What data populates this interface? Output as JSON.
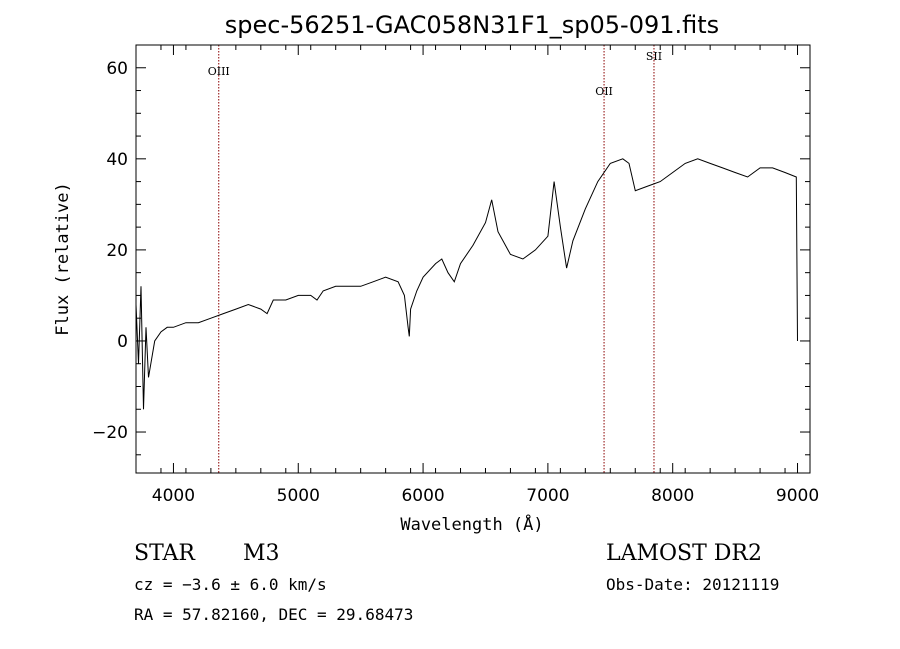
{
  "chart_data": {
    "type": "line",
    "title": "spec-56251-GAC058N31F1_sp05-091.fits",
    "xlabel": "Wavelength (Å)",
    "ylabel": "Flux (relative)",
    "xlim": [
      3700,
      9100
    ],
    "ylim": [
      -29,
      65
    ],
    "x_ticks": [
      4000,
      5000,
      6000,
      7000,
      8000,
      9000
    ],
    "x_tick_labels": [
      "4000",
      "5000",
      "6000",
      "7000",
      "8000",
      "9000"
    ],
    "y_ticks": [
      -20,
      0,
      20,
      40,
      60
    ],
    "y_tick_labels": [
      "−20",
      "0",
      "20",
      "40",
      "60"
    ],
    "grid": false,
    "series": [
      {
        "x": [
          3700,
          3720,
          3740,
          3760,
          3780,
          3800,
          3850,
          3900,
          3950,
          4000,
          4100,
          4200,
          4300,
          4400,
          4500,
          4600,
          4700,
          4750,
          4800,
          4900,
          5000,
          5100,
          5150,
          5200,
          5300,
          5400,
          5500,
          5600,
          5700,
          5800,
          5850,
          5880,
          5890,
          5900,
          5950,
          6000,
          6100,
          6150,
          6200,
          6250,
          6300,
          6400,
          6500,
          6550,
          6600,
          6700,
          6800,
          6900,
          7000,
          7050,
          7100,
          7150,
          7200,
          7300,
          7400,
          7500,
          7600,
          7650,
          7700,
          7800,
          7900,
          8000,
          8100,
          8200,
          8300,
          8400,
          8500,
          8600,
          8700,
          8800,
          8900,
          8990,
          9000
        ],
        "y": [
          8,
          -5,
          12,
          -15,
          3,
          -8,
          0,
          2,
          3,
          3,
          4,
          4,
          5,
          6,
          7,
          8,
          7,
          6,
          9,
          9,
          10,
          10,
          9,
          11,
          12,
          12,
          12,
          13,
          14,
          13,
          10,
          3,
          1,
          7,
          11,
          14,
          17,
          18,
          15,
          13,
          17,
          21,
          26,
          31,
          24,
          19,
          18,
          20,
          23,
          35,
          25,
          16,
          22,
          29,
          35,
          39,
          40,
          39,
          33,
          34,
          35,
          37,
          39,
          40,
          39,
          38,
          37,
          36,
          38,
          38,
          37,
          36,
          0
        ]
      }
    ],
    "vlines": [
      {
        "x": 4363,
        "label": "OIII"
      },
      {
        "x": 7450,
        "label": "OII"
      },
      {
        "x": 7850,
        "label": "SII"
      }
    ],
    "vline_color": "#8b0000"
  },
  "info": {
    "object_type": "STAR",
    "subclass": "M3",
    "velocity": "cz = −3.6 ± 6.0 km/s",
    "coords": "RA =  57.82160, DEC =  29.68473",
    "survey": "LAMOST DR2",
    "obs_date": "Obs-Date: 20121119"
  }
}
